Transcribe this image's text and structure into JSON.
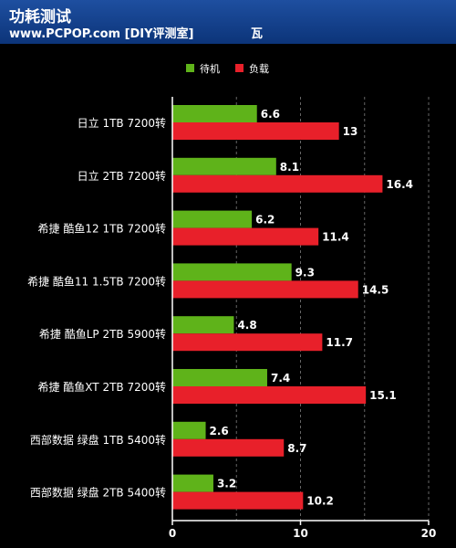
{
  "header": {
    "title": "功耗测试",
    "subtitle": "www.PCPOP.com [DIY评测室]",
    "unit": "瓦"
  },
  "colors": {
    "idle": "#5fb31a",
    "load": "#e8202a",
    "background": "#000000",
    "header": "#1e4fa0"
  },
  "chart_data": {
    "type": "bar",
    "orientation": "horizontal",
    "categories": [
      "日立 1TB 7200转",
      "日立 2TB 7200转",
      "希捷 酷鱼12 1TB 7200转",
      "希捷 酷鱼11 1.5TB 7200转",
      "希捷 酷鱼LP 2TB 5900转",
      "希捷 酷鱼XT 2TB 7200转",
      "西部数据 绿盘 1TB 5400转",
      "西部数据 绿盘 2TB 5400转"
    ],
    "series": [
      {
        "name": "待机",
        "values": [
          6.6,
          8.1,
          6.2,
          9.3,
          4.8,
          7.4,
          2.6,
          3.2
        ]
      },
      {
        "name": "负载",
        "values": [
          13,
          16.4,
          11.4,
          14.5,
          11.7,
          15.1,
          8.7,
          10.2
        ]
      }
    ],
    "xlim": [
      0,
      20
    ],
    "xticks": [
      "0",
      "10",
      "20"
    ],
    "legend_position": "top",
    "grid": true
  }
}
